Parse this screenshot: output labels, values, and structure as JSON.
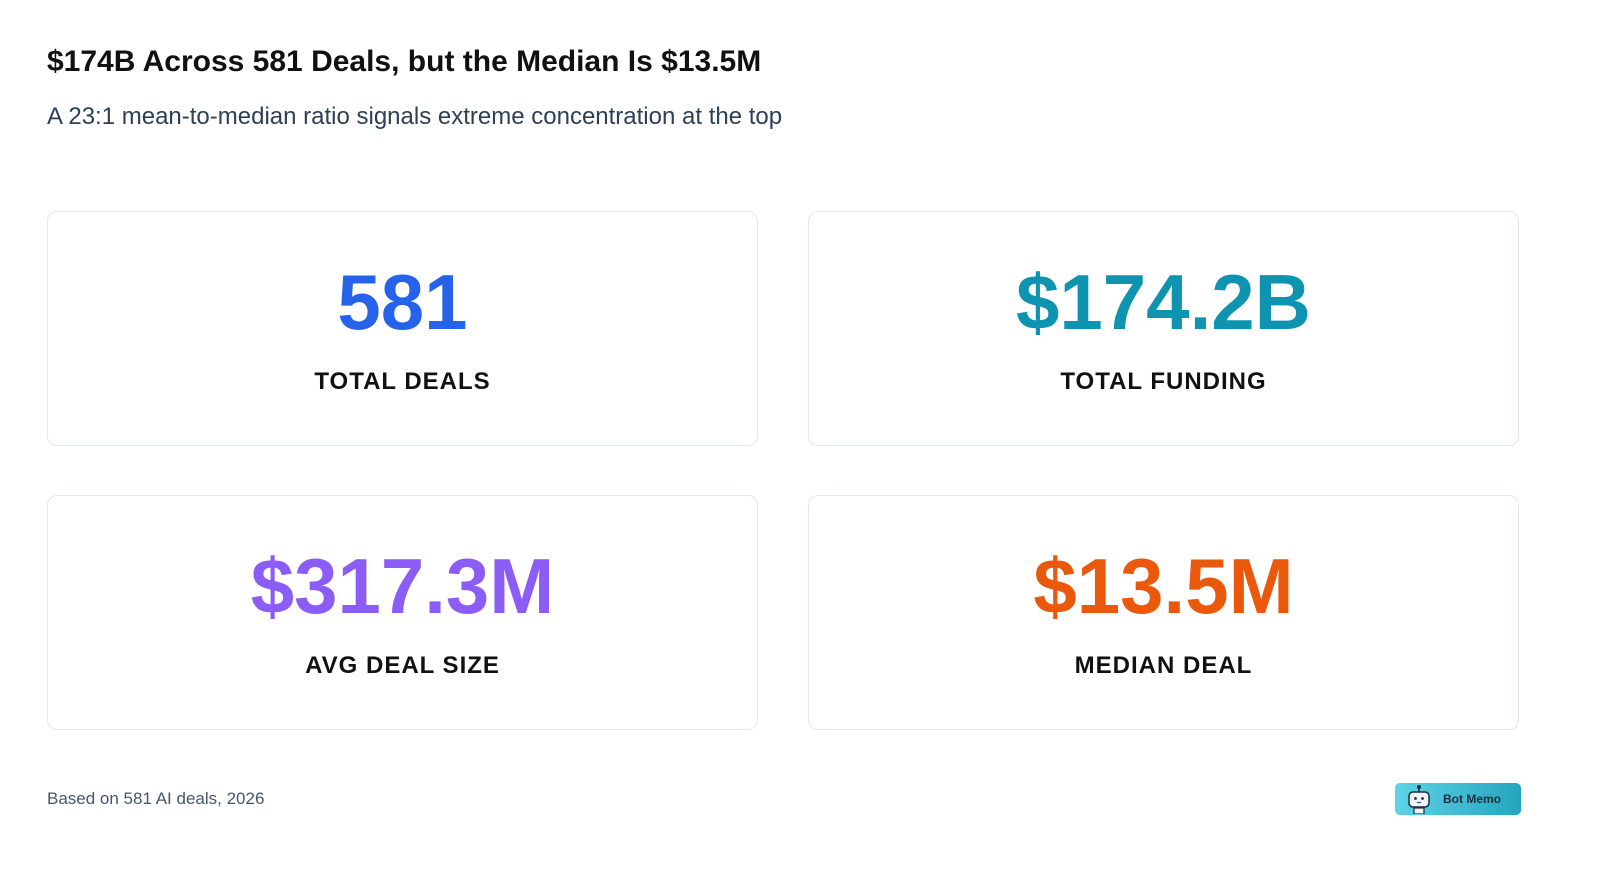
{
  "header": {
    "title": "$174B Across 581 Deals, but the Median Is $13.5M",
    "subtitle": "A 23:1 mean-to-median ratio signals extreme concentration at the top"
  },
  "cards": [
    {
      "value": "581",
      "label": "TOTAL DEALS",
      "color": "#2563eb"
    },
    {
      "value": "$174.2B",
      "label": "TOTAL FUNDING",
      "color": "#0e93b1"
    },
    {
      "value": "$317.3M",
      "label": "AVG DEAL SIZE",
      "color": "#8b5cf6"
    },
    {
      "value": "$13.5M",
      "label": "MEDIAN DEAL",
      "color": "#ea580c"
    }
  ],
  "footer": {
    "note": "Based on 581 AI deals, 2026",
    "brand": "Bot Memo"
  }
}
